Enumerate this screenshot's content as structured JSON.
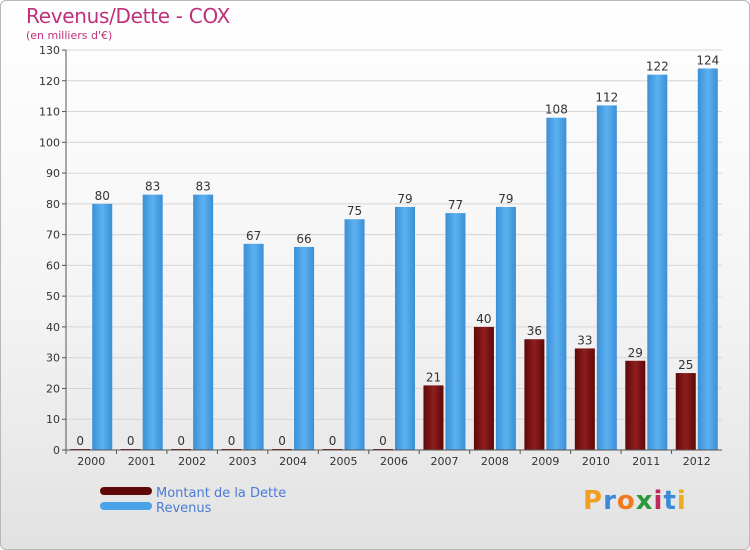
{
  "header": {
    "title": "Revenus/Dette - COX",
    "subtitle": "(en milliers d'€)"
  },
  "legend": {
    "items": [
      {
        "label": "Montant de la Dette",
        "color": "#7a0c0c"
      },
      {
        "label": "Revenus",
        "color": "#4aa3e8"
      }
    ]
  },
  "brand": {
    "letters": [
      "P",
      "r",
      "o",
      "x",
      "i",
      "t",
      "i"
    ],
    "colors": [
      "#f0a020",
      "#3a8ad8",
      "#f07a20",
      "#2a9a3a",
      "#c02a5a",
      "#3a8ad8",
      "#e8b020"
    ]
  },
  "chart_data": {
    "type": "bar",
    "categories": [
      "2000",
      "2001",
      "2002",
      "2003",
      "2004",
      "2005",
      "2006",
      "2007",
      "2008",
      "2009",
      "2010",
      "2011",
      "2012"
    ],
    "series": [
      {
        "name": "Montant de la Dette",
        "values": [
          0,
          0,
          0,
          0,
          0,
          0,
          0,
          21,
          40,
          36,
          33,
          29,
          25
        ],
        "color": "#7a0c0c"
      },
      {
        "name": "Revenus",
        "values": [
          80,
          83,
          83,
          67,
          66,
          75,
          79,
          77,
          79,
          108,
          112,
          122,
          124
        ],
        "color": "#4aa3e8"
      }
    ],
    "title": "Revenus/Dette - COX",
    "subtitle": "(en milliers d'€)",
    "xlabel": "",
    "ylabel": "",
    "ylim": [
      0,
      130
    ],
    "yticks": [
      0,
      10,
      20,
      30,
      40,
      50,
      60,
      70,
      80,
      90,
      100,
      110,
      120,
      130
    ],
    "grid": true,
    "legend_position": "bottom-left"
  }
}
